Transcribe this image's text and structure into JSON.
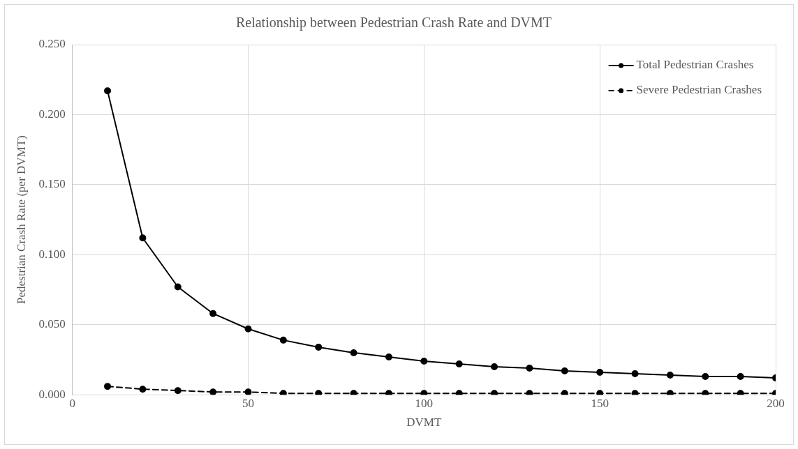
{
  "chart_data": {
    "type": "line",
    "title": "Relationship between Pedestrian Crash Rate and DVMT",
    "xlabel": "DVMT",
    "ylabel": "Pedestrian Crash Rate (per DVMT)",
    "x": [
      10,
      20,
      30,
      40,
      50,
      60,
      70,
      80,
      90,
      100,
      110,
      120,
      130,
      140,
      150,
      160,
      170,
      180,
      190,
      200
    ],
    "series": [
      {
        "name": "Total Pedestrian Crashes",
        "color": "#000000",
        "line_style": "solid",
        "values": [
          0.217,
          0.112,
          0.077,
          0.058,
          0.047,
          0.039,
          0.034,
          0.03,
          0.027,
          0.024,
          0.022,
          0.02,
          0.019,
          0.017,
          0.016,
          0.015,
          0.014,
          0.013,
          0.013,
          0.012
        ]
      },
      {
        "name": "Severe Pedestrian Crashes",
        "color": "#000000",
        "line_style": "dashed",
        "values": [
          0.006,
          0.004,
          0.003,
          0.002,
          0.002,
          0.001,
          0.001,
          0.001,
          0.001,
          0.001,
          0.001,
          0.001,
          0.001,
          0.001,
          0.001,
          0.001,
          0.001,
          0.001,
          0.001,
          0.001
        ]
      }
    ],
    "xlim": [
      0,
      200
    ],
    "xticks": [
      0,
      50,
      100,
      150,
      200
    ],
    "ylim": [
      0,
      0.25
    ],
    "yticks": [
      {
        "value": 0,
        "label": "0.000"
      },
      {
        "value": 0.05,
        "label": "0.050"
      },
      {
        "value": 0.1,
        "label": "0.100"
      },
      {
        "value": 0.15,
        "label": "0.150"
      },
      {
        "value": 0.2,
        "label": "0.200"
      },
      {
        "value": 0.25,
        "label": "0.250"
      }
    ],
    "grid": true,
    "legend": "top right",
    "marker": "circle"
  }
}
